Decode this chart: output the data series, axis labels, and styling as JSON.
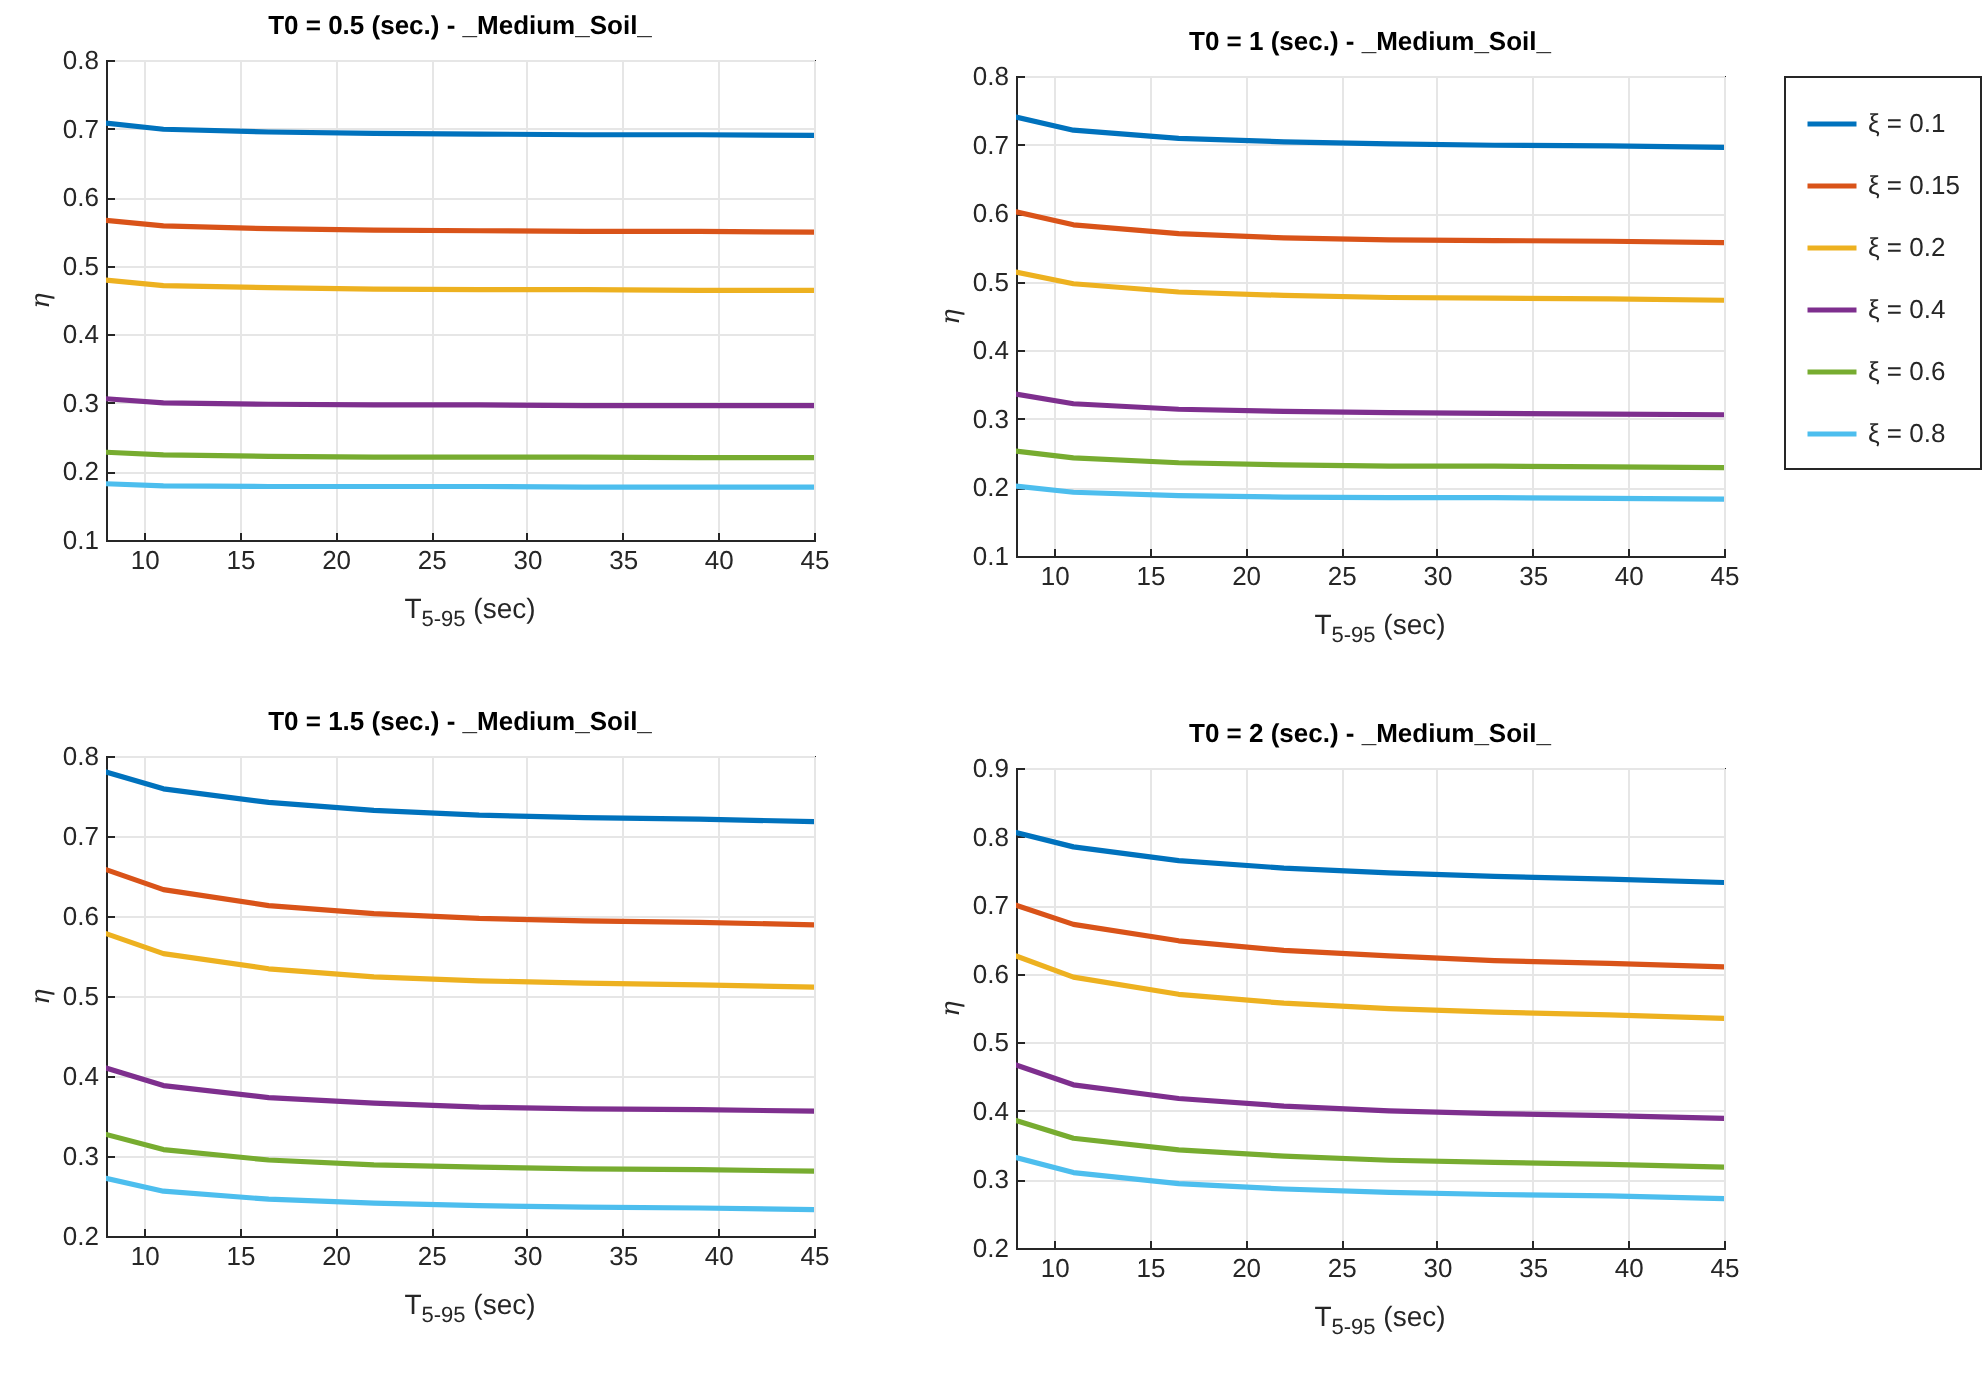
{
  "chart_data": [
    {
      "type": "line",
      "title": "T0 = 0.5 (sec.) - _Medium_Soil_",
      "xlabel": "T$_{5-95}$ (sec)",
      "ylabel": "η",
      "x": [
        8,
        11,
        16.5,
        22,
        27.5,
        33,
        39,
        45
      ],
      "xlim": [
        8,
        45
      ],
      "xticks": [
        10,
        15,
        20,
        25,
        30,
        35,
        40,
        45
      ],
      "ylim": [
        0.1,
        0.8
      ],
      "yticks": [
        0.1,
        0.2,
        0.3,
        0.4,
        0.5,
        0.6,
        0.7,
        0.8
      ],
      "grid": true,
      "legend": false,
      "series": [
        {
          "color": "#0072bd",
          "values": [
            0.708,
            0.699,
            0.695,
            0.693,
            0.692,
            0.691,
            0.691,
            0.69
          ]
        },
        {
          "color": "#d95319",
          "values": [
            0.566,
            0.558,
            0.554,
            0.552,
            0.551,
            0.55,
            0.55,
            0.549
          ]
        },
        {
          "color": "#edb120",
          "values": [
            0.479,
            0.471,
            0.468,
            0.466,
            0.465,
            0.465,
            0.464,
            0.464
          ]
        },
        {
          "color": "#7e2f8e",
          "values": [
            0.306,
            0.3,
            0.298,
            0.297,
            0.297,
            0.296,
            0.296,
            0.296
          ]
        },
        {
          "color": "#77ac30",
          "values": [
            0.228,
            0.224,
            0.222,
            0.221,
            0.221,
            0.221,
            0.22,
            0.22
          ]
        },
        {
          "color": "#4dbeee",
          "values": [
            0.182,
            0.179,
            0.178,
            0.178,
            0.178,
            0.177,
            0.177,
            0.177
          ]
        }
      ]
    },
    {
      "type": "line",
      "title": "T0 = 1 (sec.) - _Medium_Soil_",
      "xlabel": "T$_{5-95}$ (sec)",
      "ylabel": "η",
      "x": [
        8,
        11,
        16.5,
        22,
        27.5,
        33,
        39,
        45
      ],
      "xlim": [
        8,
        45
      ],
      "xticks": [
        10,
        15,
        20,
        25,
        30,
        35,
        40,
        45
      ],
      "ylim": [
        0.1,
        0.8
      ],
      "yticks": [
        0.1,
        0.2,
        0.3,
        0.4,
        0.5,
        0.6,
        0.7,
        0.8
      ],
      "grid": true,
      "legend": "right",
      "series": [
        {
          "name": "ξ = 0.1",
          "color": "#0072bd",
          "values": [
            0.74,
            0.721,
            0.709,
            0.704,
            0.701,
            0.699,
            0.698,
            0.696
          ]
        },
        {
          "name": "ξ = 0.15",
          "color": "#d95319",
          "values": [
            0.602,
            0.583,
            0.57,
            0.564,
            0.561,
            0.56,
            0.559,
            0.557
          ]
        },
        {
          "name": "ξ = 0.2",
          "color": "#edb120",
          "values": [
            0.514,
            0.497,
            0.485,
            0.48,
            0.477,
            0.476,
            0.475,
            0.473
          ]
        },
        {
          "name": "ξ = 0.4",
          "color": "#7e2f8e",
          "values": [
            0.336,
            0.322,
            0.314,
            0.311,
            0.309,
            0.308,
            0.307,
            0.306
          ]
        },
        {
          "name": "ξ = 0.6",
          "color": "#77ac30",
          "values": [
            0.253,
            0.243,
            0.236,
            0.233,
            0.231,
            0.231,
            0.23,
            0.229
          ]
        },
        {
          "name": "ξ = 0.8",
          "color": "#4dbeee",
          "values": [
            0.202,
            0.193,
            0.188,
            0.186,
            0.185,
            0.185,
            0.184,
            0.183
          ]
        }
      ]
    },
    {
      "type": "line",
      "title": "T0 = 1.5 (sec.) - _Medium_Soil_",
      "xlabel": "T$_{5-95}$ (sec)",
      "ylabel": "η",
      "x": [
        8,
        11,
        16.5,
        22,
        27.5,
        33,
        39,
        45
      ],
      "xlim": [
        8,
        45
      ],
      "xticks": [
        10,
        15,
        20,
        25,
        30,
        35,
        40,
        45
      ],
      "ylim": [
        0.2,
        0.8
      ],
      "yticks": [
        0.2,
        0.3,
        0.4,
        0.5,
        0.6,
        0.7,
        0.8
      ],
      "grid": true,
      "legend": false,
      "series": [
        {
          "color": "#0072bd",
          "values": [
            0.78,
            0.759,
            0.742,
            0.732,
            0.726,
            0.723,
            0.721,
            0.718
          ]
        },
        {
          "color": "#d95319",
          "values": [
            0.658,
            0.633,
            0.613,
            0.603,
            0.597,
            0.594,
            0.592,
            0.589
          ]
        },
        {
          "color": "#edb120",
          "values": [
            0.578,
            0.553,
            0.534,
            0.524,
            0.519,
            0.516,
            0.514,
            0.511
          ]
        },
        {
          "color": "#7e2f8e",
          "values": [
            0.41,
            0.388,
            0.373,
            0.366,
            0.361,
            0.359,
            0.358,
            0.356
          ]
        },
        {
          "color": "#77ac30",
          "values": [
            0.327,
            0.308,
            0.295,
            0.289,
            0.286,
            0.284,
            0.283,
            0.281
          ]
        },
        {
          "color": "#4dbeee",
          "values": [
            0.272,
            0.256,
            0.246,
            0.241,
            0.238,
            0.236,
            0.235,
            0.233
          ]
        }
      ]
    },
    {
      "type": "line",
      "title": "T0 = 2 (sec.) - _Medium_Soil_",
      "xlabel": "T$_{5-95}$ (sec)",
      "ylabel": "η",
      "x": [
        8,
        11,
        16.5,
        22,
        27.5,
        33,
        39,
        45
      ],
      "xlim": [
        8,
        45
      ],
      "xticks": [
        10,
        15,
        20,
        25,
        30,
        35,
        40,
        45
      ],
      "ylim": [
        0.2,
        0.9
      ],
      "yticks": [
        0.2,
        0.3,
        0.4,
        0.5,
        0.6,
        0.7,
        0.8,
        0.9
      ],
      "grid": true,
      "legend": false,
      "series": [
        {
          "color": "#0072bd",
          "values": [
            0.806,
            0.785,
            0.765,
            0.754,
            0.747,
            0.742,
            0.738,
            0.733
          ]
        },
        {
          "color": "#d95319",
          "values": [
            0.7,
            0.672,
            0.648,
            0.634,
            0.626,
            0.619,
            0.615,
            0.61
          ]
        },
        {
          "color": "#edb120",
          "values": [
            0.626,
            0.595,
            0.57,
            0.557,
            0.549,
            0.544,
            0.54,
            0.535
          ]
        },
        {
          "color": "#7e2f8e",
          "values": [
            0.467,
            0.438,
            0.418,
            0.407,
            0.4,
            0.396,
            0.393,
            0.389
          ]
        },
        {
          "color": "#77ac30",
          "values": [
            0.386,
            0.36,
            0.343,
            0.334,
            0.328,
            0.325,
            0.322,
            0.318
          ]
        },
        {
          "color": "#4dbeee",
          "values": [
            0.332,
            0.31,
            0.294,
            0.286,
            0.281,
            0.278,
            0.276,
            0.272
          ]
        }
      ]
    }
  ]
}
